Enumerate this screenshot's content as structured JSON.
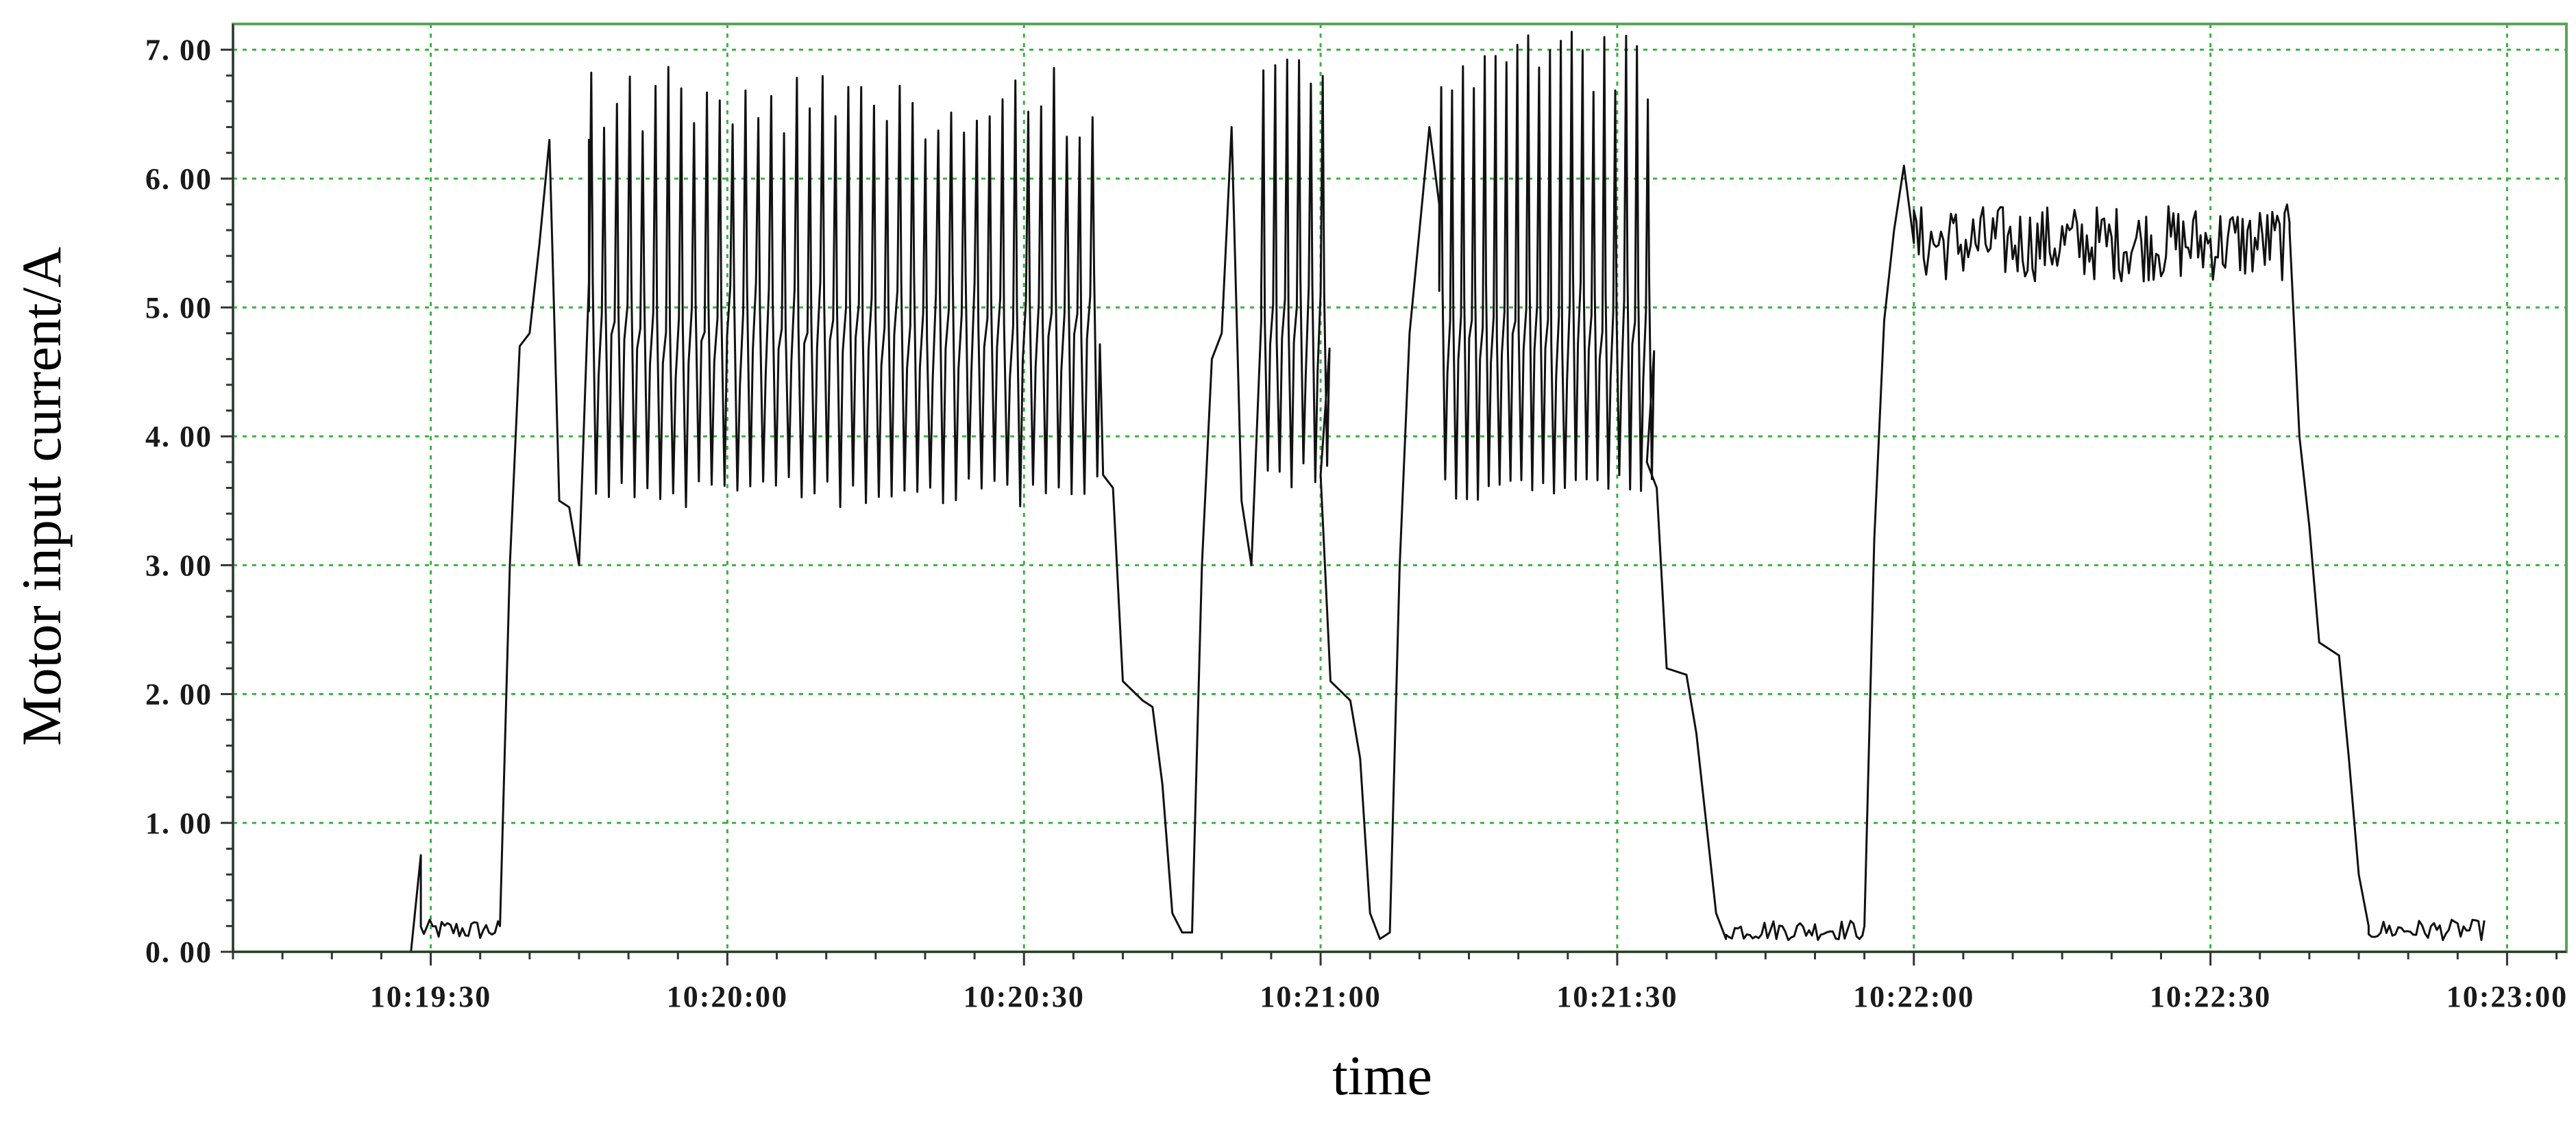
{
  "chart_data": {
    "type": "line",
    "title": "",
    "xlabel": "time",
    "ylabel": "Motor input current/A",
    "grid": true,
    "legend": "none",
    "colors": {
      "line": "#111111",
      "grid": "#3cb043",
      "frame": "#5aa55a",
      "axis": "#333333"
    },
    "x_range": [
      "10:19:10",
      "10:23:06"
    ],
    "ylim": [
      0,
      7.2
    ],
    "x_ticks": [
      "10:19:30",
      "10:20:00",
      "10:20:30",
      "10:21:00",
      "10:21:30",
      "10:22:00",
      "10:22:30",
      "10:23:00"
    ],
    "y_ticks": [
      "0. 00",
      "1. 00",
      "2. 00",
      "3. 00",
      "4. 00",
      "5. 00",
      "6. 00",
      "7. 00"
    ],
    "y_tick_values": [
      0,
      1,
      2,
      3,
      4,
      5,
      6,
      7
    ],
    "series": [
      {
        "segments": [
          {
            "kind": "level",
            "points": [
              [
                "10:19:10",
                0.0
              ],
              [
                "10:19:28",
                0.0
              ],
              [
                "10:19:29",
                0.75
              ],
              [
                "10:19:29",
                0.2
              ],
              [
                "10:19:37",
                0.18
              ]
            ]
          },
          {
            "kind": "points",
            "points": [
              [
                "10:19:37",
                0.2
              ],
              [
                "10:19:38",
                3.0
              ],
              [
                "10:19:39",
                4.7
              ],
              [
                "10:19:40",
                4.8
              ],
              [
                "10:19:41",
                5.5
              ],
              [
                "10:19:42",
                6.3
              ],
              [
                "10:19:43",
                3.5
              ],
              [
                "10:19:44",
                3.45
              ],
              [
                "10:19:45",
                3.0
              ],
              [
                "10:19:46",
                5.2
              ],
              [
                "10:19:46",
                6.3
              ]
            ]
          },
          {
            "kind": "oscillation",
            "start": "10:19:46",
            "end": "10:20:38",
            "period_s": 1.3,
            "low": [
              3.45,
              3.7
            ],
            "high": [
              6.3,
              6.9
            ],
            "mid": 5.0
          },
          {
            "kind": "points",
            "points": [
              [
                "10:20:38",
                3.7
              ],
              [
                "10:20:39",
                3.6
              ],
              [
                "10:20:40",
                2.1
              ],
              [
                "10:20:42",
                1.95
              ],
              [
                "10:20:43",
                1.9
              ],
              [
                "10:20:44",
                1.3
              ],
              [
                "10:20:45",
                0.3
              ],
              [
                "10:20:46",
                0.15
              ],
              [
                "10:20:47",
                0.15
              ],
              [
                "10:20:48",
                3.0
              ],
              [
                "10:20:49",
                4.6
              ],
              [
                "10:20:50",
                4.8
              ],
              [
                "10:20:51",
                6.4
              ],
              [
                "10:20:52",
                3.5
              ],
              [
                "10:20:53",
                3.0
              ],
              [
                "10:20:54",
                4.9
              ]
            ]
          },
          {
            "kind": "oscillation",
            "start": "10:20:54",
            "end": "10:21:00",
            "period_s": 1.2,
            "low": [
              3.6,
              3.8
            ],
            "high": [
              6.7,
              7.0
            ],
            "mid": 5.0
          },
          {
            "kind": "points",
            "points": [
              [
                "10:21:00",
                3.7
              ],
              [
                "10:21:01",
                2.1
              ],
              [
                "10:21:03",
                1.95
              ],
              [
                "10:21:04",
                1.5
              ],
              [
                "10:21:05",
                0.3
              ],
              [
                "10:21:06",
                0.1
              ],
              [
                "10:21:07",
                0.15
              ],
              [
                "10:21:08",
                3.0
              ],
              [
                "10:21:09",
                4.8
              ],
              [
                "10:21:10",
                5.6
              ],
              [
                "10:21:11",
                6.4
              ],
              [
                "10:21:12",
                5.8
              ]
            ]
          },
          {
            "kind": "oscillation",
            "start": "10:21:12",
            "end": "10:21:33",
            "period_s": 1.1,
            "low": [
              3.5,
              3.7
            ],
            "high": [
              6.6,
              7.15
            ],
            "mid": 5.0
          },
          {
            "kind": "points",
            "points": [
              [
                "10:21:33",
                3.8
              ],
              [
                "10:21:34",
                3.6
              ],
              [
                "10:21:35",
                2.2
              ],
              [
                "10:21:37",
                2.15
              ],
              [
                "10:21:38",
                1.7
              ],
              [
                "10:21:39",
                1.0
              ],
              [
                "10:21:40",
                0.3
              ],
              [
                "10:21:41",
                0.1
              ]
            ]
          },
          {
            "kind": "noise",
            "start": "10:21:41",
            "end": "10:21:55",
            "center": 0.17,
            "amplitude": 0.08,
            "period_s": 0.3
          },
          {
            "kind": "points",
            "points": [
              [
                "10:21:55",
                0.2
              ],
              [
                "10:21:56",
                3.2
              ],
              [
                "10:21:57",
                4.9
              ],
              [
                "10:21:58",
                5.6
              ],
              [
                "10:21:59",
                6.1
              ],
              [
                "10:22:00",
                5.5
              ]
            ]
          },
          {
            "kind": "noise",
            "start": "10:22:00",
            "end": "10:22:38",
            "center": 5.5,
            "amplitude": 0.3,
            "period_s": 0.25
          },
          {
            "kind": "points",
            "points": [
              [
                "10:22:38",
                5.6
              ],
              [
                "10:22:39",
                4.0
              ],
              [
                "10:22:40",
                3.3
              ],
              [
                "10:22:41",
                2.4
              ],
              [
                "10:22:43",
                2.3
              ],
              [
                "10:22:44",
                1.5
              ],
              [
                "10:22:45",
                0.6
              ],
              [
                "10:22:46",
                0.2
              ]
            ]
          },
          {
            "kind": "noise",
            "start": "10:22:46",
            "end": "10:22:58",
            "center": 0.17,
            "amplitude": 0.08,
            "period_s": 0.3
          }
        ]
      }
    ]
  }
}
